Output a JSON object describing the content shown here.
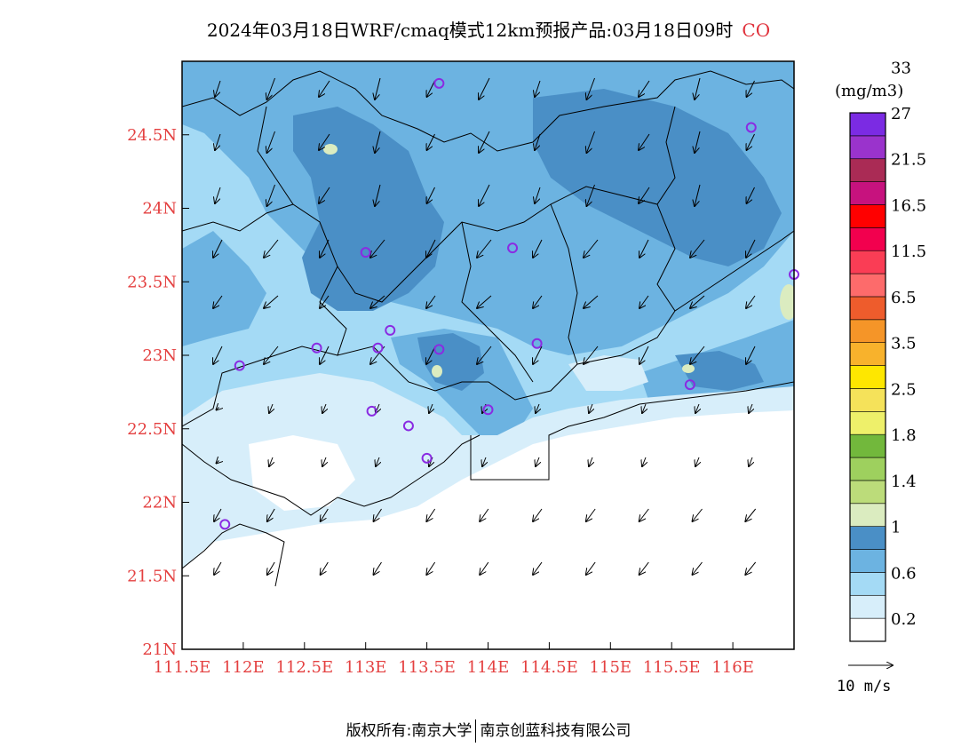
{
  "header": {
    "title": "2024年03月18日WRF/cmaq模式12km预报产品:03月18日09时",
    "species": "CO"
  },
  "map": {
    "lon_range": [
      111.5,
      116.5
    ],
    "lat_range": [
      21.0,
      25.0
    ],
    "x_ticks": [
      {
        "lon": 111.5,
        "label": "111.5E"
      },
      {
        "lon": 112.0,
        "label": "112E"
      },
      {
        "lon": 112.5,
        "label": "112.5E"
      },
      {
        "lon": 113.0,
        "label": "113E"
      },
      {
        "lon": 113.5,
        "label": "113.5E"
      },
      {
        "lon": 114.0,
        "label": "114E"
      },
      {
        "lon": 114.5,
        "label": "114.5E"
      },
      {
        "lon": 115.0,
        "label": "115E"
      },
      {
        "lon": 115.5,
        "label": "115.5E"
      },
      {
        "lon": 116.0,
        "label": "116E"
      }
    ],
    "y_ticks": [
      {
        "lat": 21.0,
        "label": "21N"
      },
      {
        "lat": 21.5,
        "label": "21.5N"
      },
      {
        "lat": 22.0,
        "label": "22N"
      },
      {
        "lat": 22.5,
        "label": "22.5N"
      },
      {
        "lat": 23.0,
        "label": "23N"
      },
      {
        "lat": 23.5,
        "label": "23.5N"
      },
      {
        "lat": 24.0,
        "label": "24N"
      },
      {
        "lat": 24.5,
        "label": "24.5N"
      }
    ],
    "stations": [
      {
        "lon": 113.6,
        "lat": 24.85
      },
      {
        "lon": 116.15,
        "lat": 24.55
      },
      {
        "lon": 113.0,
        "lat": 23.7
      },
      {
        "lon": 114.2,
        "lat": 23.73
      },
      {
        "lon": 116.5,
        "lat": 23.55
      },
      {
        "lon": 113.2,
        "lat": 23.17
      },
      {
        "lon": 112.6,
        "lat": 23.05
      },
      {
        "lon": 113.1,
        "lat": 23.05
      },
      {
        "lon": 113.6,
        "lat": 23.04
      },
      {
        "lon": 114.4,
        "lat": 23.08
      },
      {
        "lon": 111.97,
        "lat": 22.93
      },
      {
        "lon": 115.65,
        "lat": 22.8
      },
      {
        "lon": 113.05,
        "lat": 22.62
      },
      {
        "lon": 113.35,
        "lat": 22.52
      },
      {
        "lon": 114.0,
        "lat": 22.63
      },
      {
        "lon": 113.5,
        "lat": 22.3
      },
      {
        "lon": 111.85,
        "lat": 21.85
      }
    ]
  },
  "colorbar": {
    "unit": "(mg/m3)",
    "colors": [
      "#ffffff",
      "#d7eefa",
      "#a4daf5",
      "#6cb3e1",
      "#4a8fc6",
      "#dbecc0",
      "#bcdc7a",
      "#9ed05e",
      "#72b83c",
      "#eef06a",
      "#f5e25a",
      "#fee700",
      "#f8b22c",
      "#f59528",
      "#ee5c2c",
      "#fd6b6b",
      "#fa3d55",
      "#f2004e",
      "#ff0000",
      "#c7127e",
      "#aa2b55",
      "#9a33cc",
      "#7b2be3"
    ],
    "labels": [
      "0.2",
      "0.6",
      "1",
      "1.4",
      "1.8",
      "2.5",
      "3.5",
      "6.5",
      "11.5",
      "16.5",
      "21.5",
      "27",
      "33"
    ],
    "vector_ref_label": "10  m/s"
  },
  "footer": {
    "left": "版权所有:南京大学",
    "right": "南京创蓝科技有限公司"
  }
}
